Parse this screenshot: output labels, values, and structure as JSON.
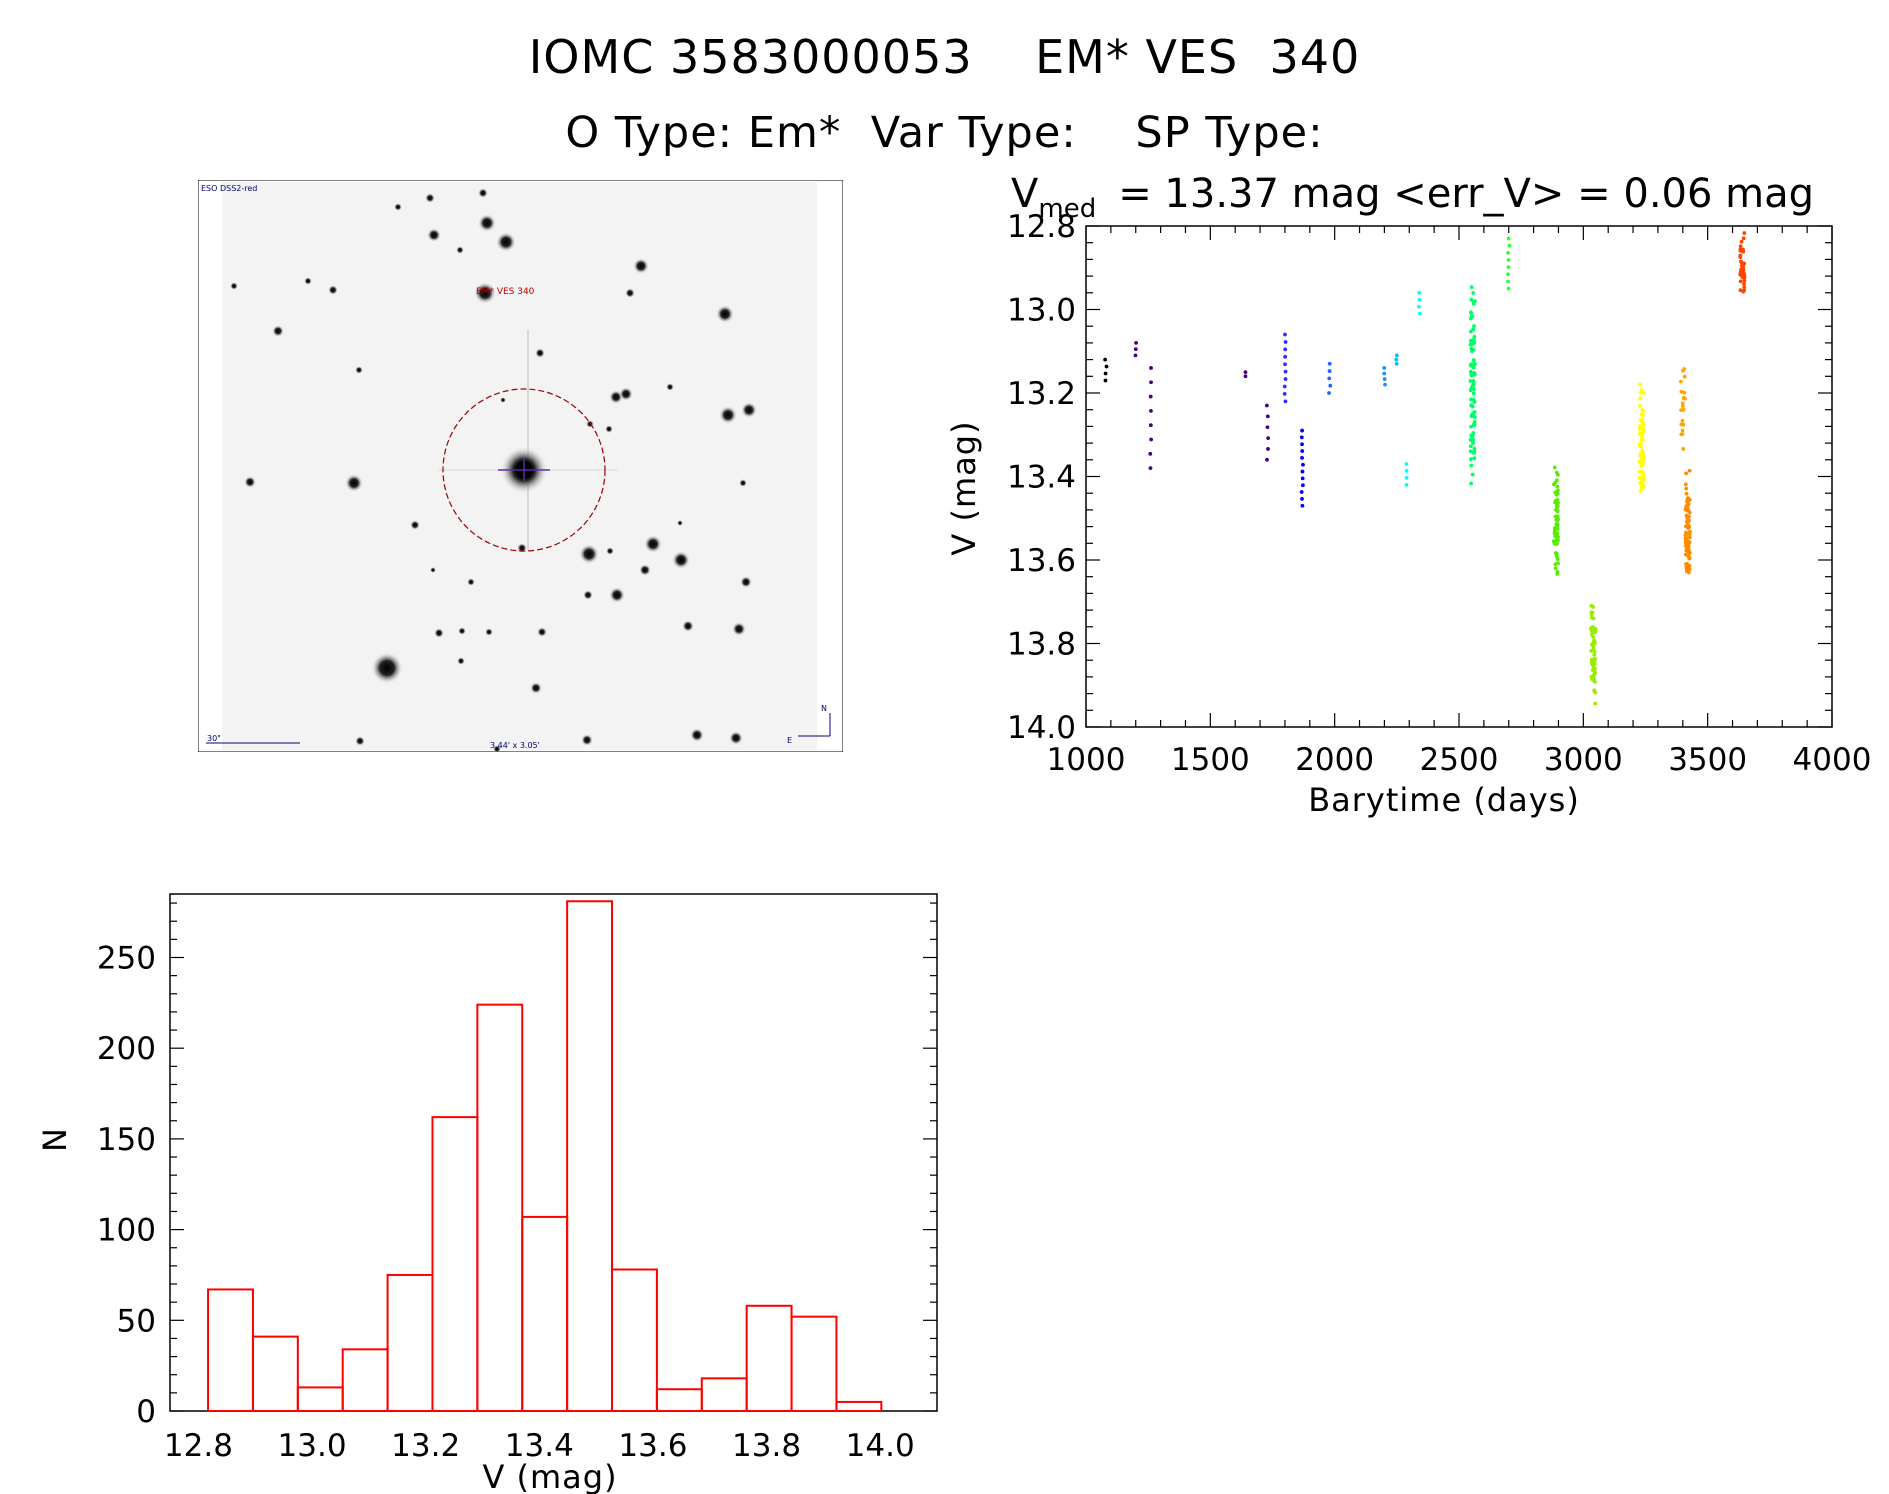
{
  "header": {
    "title": "IOMC 3583000053    EM* VES  340",
    "types": "O Type: Em*  Var Type:    SP Type:"
  },
  "finder": {
    "survey_label": "ESO DSS2-red",
    "target_label": "EM* VES 340",
    "scale_label": "30\"",
    "fov_label": "3.44' x 3.05'",
    "north_label": "N",
    "east_label": "E"
  },
  "light_curve_header": {
    "v_symbol": "V",
    "v_subscript": "med",
    "stats_text": "= 13.37 mag <err_V> = 0.06 mag"
  },
  "chart_data": [
    {
      "type": "scatter",
      "title": "V_med = 13.37 mag <err_V> = 0.06 mag",
      "xlabel": "Barytime (days)",
      "ylabel": "V (mag)",
      "xlim": [
        1000,
        4000
      ],
      "ylim": [
        14.0,
        12.8
      ],
      "y_inverted": true,
      "x_ticks": [
        1000,
        1500,
        2000,
        2500,
        3000,
        3500,
        4000
      ],
      "y_ticks": [
        "12.8",
        "13.0",
        "13.2",
        "13.4",
        "13.6",
        "13.8",
        "14.0"
      ],
      "color_by_time": [
        "#000000",
        "#4b0082",
        "#0000ff",
        "#00bfff",
        "#00ff00",
        "#adff2f",
        "#ffff00",
        "#ffa500",
        "#ff4500"
      ],
      "point_groups": [
        {
          "x": 1080,
          "v_min": 13.12,
          "v_max": 13.17,
          "n": 4,
          "color": "#000000"
        },
        {
          "x": 1200,
          "v_min": 13.08,
          "v_max": 13.11,
          "n": 3,
          "color": "#4b0082"
        },
        {
          "x": 1260,
          "v_min": 13.14,
          "v_max": 13.38,
          "n": 8,
          "color": "#4b0082"
        },
        {
          "x": 1640,
          "v_min": 13.15,
          "v_max": 13.16,
          "n": 2,
          "color": "#4b0082"
        },
        {
          "x": 1730,
          "v_min": 13.23,
          "v_max": 13.36,
          "n": 6,
          "color": "#4b0082"
        },
        {
          "x": 1800,
          "v_min": 13.06,
          "v_max": 13.22,
          "n": 10,
          "color": "#2e2eff"
        },
        {
          "x": 1870,
          "v_min": 13.29,
          "v_max": 13.47,
          "n": 12,
          "color": "#0000ff"
        },
        {
          "x": 1980,
          "v_min": 13.13,
          "v_max": 13.2,
          "n": 5,
          "color": "#1e66ff"
        },
        {
          "x": 2200,
          "v_min": 13.14,
          "v_max": 13.18,
          "n": 4,
          "color": "#1e90ff"
        },
        {
          "x": 2250,
          "v_min": 13.11,
          "v_max": 13.13,
          "n": 3,
          "color": "#00bfff"
        },
        {
          "x": 2290,
          "v_min": 13.37,
          "v_max": 13.42,
          "n": 4,
          "color": "#00ffff"
        },
        {
          "x": 2340,
          "v_min": 12.96,
          "v_max": 13.01,
          "n": 4,
          "color": "#00ffff"
        },
        {
          "x": 2555,
          "v_min": 12.9,
          "v_max": 13.45,
          "n": 90,
          "color": "#00ff66"
        },
        {
          "x": 2700,
          "v_min": 12.83,
          "v_max": 12.95,
          "n": 8,
          "color": "#33ff33"
        },
        {
          "x": 2890,
          "v_min": 13.35,
          "v_max": 13.66,
          "n": 60,
          "color": "#55ee00"
        },
        {
          "x": 3040,
          "v_min": 13.69,
          "v_max": 13.96,
          "n": 70,
          "color": "#99ee00"
        },
        {
          "x": 3235,
          "v_min": 13.17,
          "v_max": 13.5,
          "n": 70,
          "color": "#ffff00"
        },
        {
          "x": 3400,
          "v_min": 13.11,
          "v_max": 13.36,
          "n": 20,
          "color": "#ffa500"
        },
        {
          "x": 3420,
          "v_min": 13.38,
          "v_max": 13.68,
          "n": 80,
          "color": "#ff8c00"
        },
        {
          "x": 3640,
          "v_min": 12.81,
          "v_max": 13.0,
          "n": 40,
          "color": "#ff4500"
        }
      ]
    },
    {
      "type": "bar",
      "title": "",
      "xlabel": "V (mag)",
      "ylabel": "N",
      "xlim": [
        12.8,
        14.1
      ],
      "ylim": [
        0,
        285
      ],
      "x_ticks": [
        "12.8",
        "13.0",
        "13.2",
        "13.4",
        "13.6",
        "13.8",
        "14.0"
      ],
      "y_ticks": [
        0,
        50,
        100,
        150,
        200,
        250
      ],
      "bin_width": 0.079,
      "bin_starts": [
        12.817,
        12.896,
        12.975,
        13.054,
        13.133,
        13.212,
        13.291,
        13.37,
        13.449,
        13.528,
        13.607,
        13.686,
        13.765,
        13.844,
        13.923
      ],
      "values": [
        67,
        41,
        13,
        34,
        75,
        162,
        224,
        107,
        281,
        78,
        12,
        18,
        58,
        52,
        5
      ],
      "bar_color": "#ff0000"
    }
  ]
}
